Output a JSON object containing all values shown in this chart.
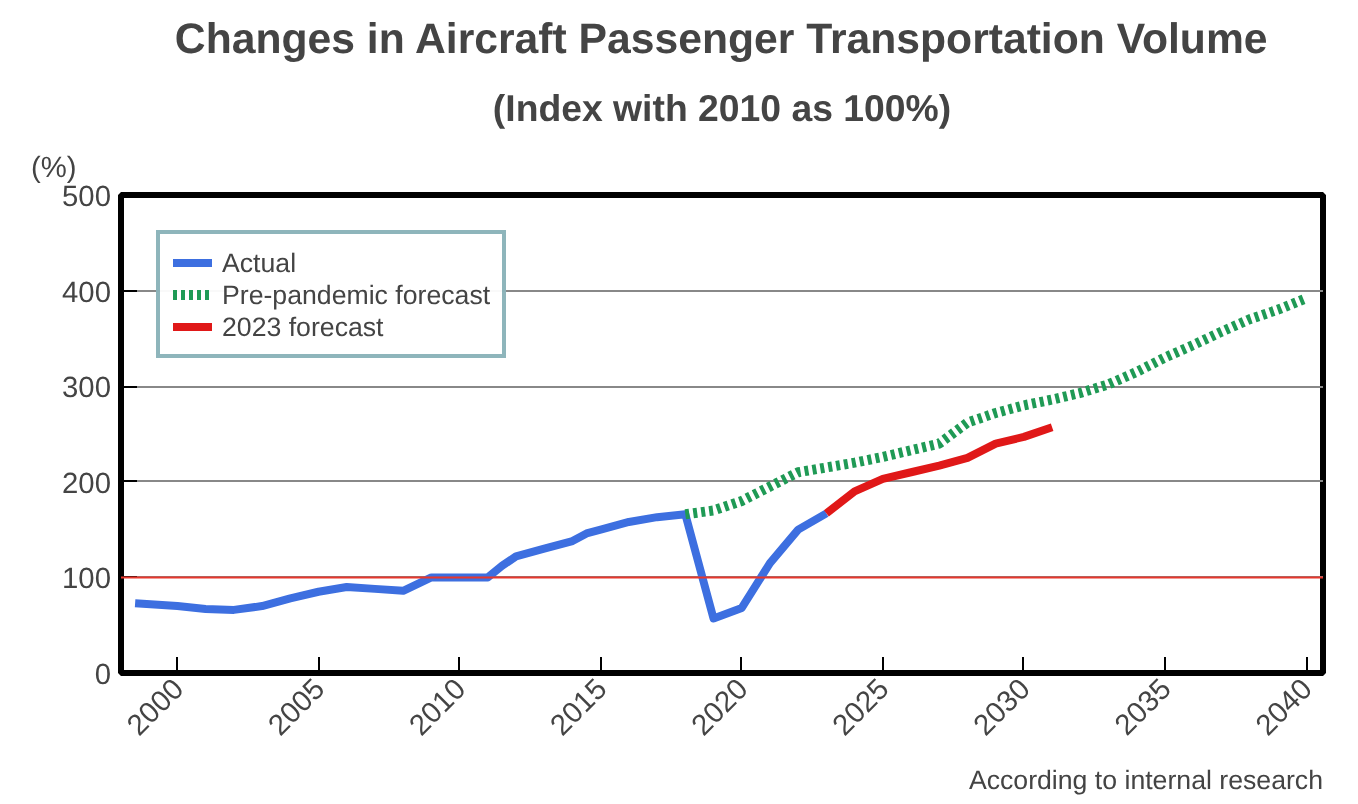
{
  "chart_data": {
    "type": "line",
    "title": "Changes in Aircraft Passenger Transportation Volume",
    "subtitle": "(Index with 2010 as 100%)",
    "ylabel": "(%)",
    "annotations": [
      "According to internal research"
    ],
    "xlim": [
      1998,
      2040.6
    ],
    "xticks": [
      2000,
      2005,
      2010,
      2015,
      2020,
      2025,
      2030,
      2035,
      2040
    ],
    "ylim": [
      0,
      500
    ],
    "yticks": [
      0,
      100,
      200,
      300,
      400,
      500
    ],
    "grid": "y",
    "legend": "top left",
    "ref_lines": [
      {
        "axis": "y",
        "value": 100,
        "label": null,
        "color": "#e8372c"
      }
    ],
    "series": [
      {
        "name": "Actual",
        "color": "#3d6fe0",
        "line_style": "solid",
        "x": [
          1998.5,
          2000,
          2001,
          2002,
          2003,
          2004,
          2005,
          2006,
          2007,
          2008,
          2009,
          2010,
          2011,
          2011.5,
          2012,
          2013,
          2014,
          2014.5,
          2015,
          2016,
          2017,
          2018,
          2019,
          2020,
          2021,
          2022,
          2023
        ],
        "values": [
          73,
          70,
          67,
          66,
          70,
          78,
          85,
          90,
          88,
          86,
          100,
          100,
          100,
          112,
          122,
          130,
          138,
          146,
          150,
          158,
          163,
          166,
          57,
          68,
          115,
          150,
          167
        ]
      },
      {
        "name": "Pre-pandemic forecast",
        "color": "#1f9a55",
        "line_style": "dotted",
        "x": [
          2018,
          2019,
          2020,
          2021,
          2022,
          2023,
          2024,
          2025,
          2026,
          2027,
          2028,
          2029,
          2030,
          2031,
          2032,
          2033,
          2034,
          2035,
          2036,
          2037,
          2038,
          2039,
          2040
        ],
        "values": [
          166,
          170,
          180,
          195,
          210,
          215,
          220,
          226,
          233,
          240,
          262,
          272,
          280,
          286,
          293,
          302,
          315,
          330,
          343,
          357,
          370,
          380,
          392
        ]
      },
      {
        "name": "2023 forecast",
        "color": "#e01818",
        "line_style": "solid",
        "x": [
          2023,
          2024,
          2025,
          2026,
          2027,
          2028,
          2029,
          2030,
          2031
        ],
        "values": [
          167,
          190,
          203,
          210,
          217,
          225,
          240,
          247,
          257
        ]
      }
    ]
  }
}
